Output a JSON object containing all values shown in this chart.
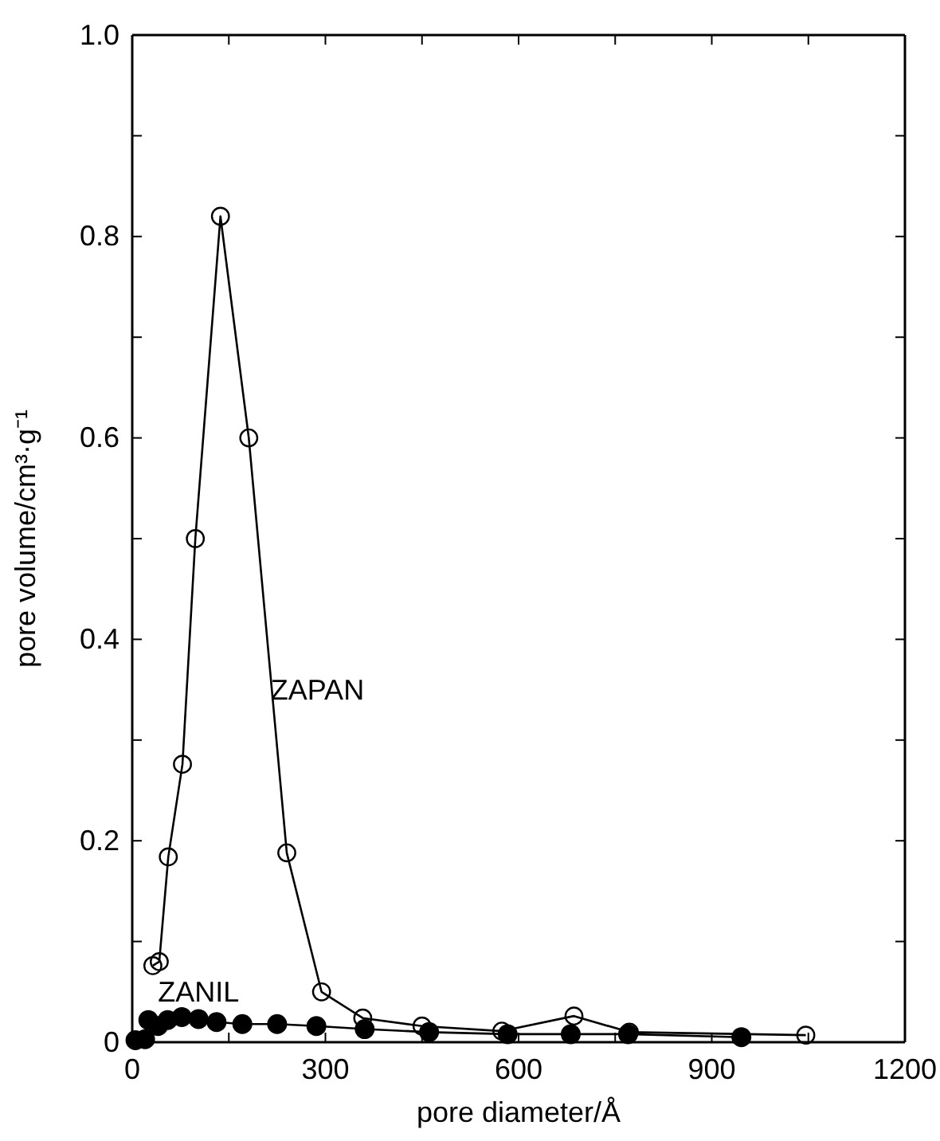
{
  "chart_data": {
    "type": "line",
    "xlabel": "pore diameter/Å",
    "ylabel": "pore volume/cm³·g⁻¹",
    "xlim": [
      0,
      1200
    ],
    "ylim": [
      0,
      1.0
    ],
    "xticks": [
      0,
      {
        "value": 150,
        "label": null
      },
      300,
      {
        "value": 450,
        "label": null
      },
      600,
      {
        "value": 750,
        "label": null
      },
      900,
      {
        "value": 1050,
        "label": null
      },
      1200
    ],
    "yticks": [
      {
        "value": 0,
        "label": "0"
      },
      {
        "value": 0.1,
        "label": null
      },
      0.2,
      {
        "value": 0.3,
        "label": null
      },
      0.4,
      {
        "value": 0.5,
        "label": null
      },
      0.6,
      {
        "value": 0.7,
        "label": null
      },
      0.8,
      {
        "value": 0.9,
        "label": null
      },
      {
        "value": 1.0,
        "label": "1.0"
      }
    ],
    "grid": false,
    "legend": false,
    "line_style": "solid",
    "series": [
      {
        "name": "ZAPAN",
        "color": "#000000",
        "marker": "circle",
        "x": [
          32,
          42,
          56,
          78,
          98,
          137,
          181,
          240,
          294,
          358,
          450,
          574,
          686,
          772,
          1046
        ],
        "values": [
          0.076,
          0.08,
          0.184,
          0.276,
          0.5,
          0.82,
          0.6,
          0.188,
          0.05,
          0.024,
          0.016,
          0.011,
          0.026,
          0.01,
          0.007
        ]
      },
      {
        "name": "ZANIL",
        "color": "#000000",
        "marker": "circle",
        "x": [
          5,
          20,
          25,
          40,
          55,
          77,
          103,
          131,
          171,
          225,
          286,
          361,
          461,
          583,
          681,
          770,
          946
        ],
        "values": [
          0.002,
          0.003,
          0.022,
          0.016,
          0.022,
          0.025,
          0.023,
          0.02,
          0.018,
          0.018,
          0.016,
          0.013,
          0.01,
          0.008,
          0.008,
          0.008,
          0.005
        ]
      }
    ]
  }
}
